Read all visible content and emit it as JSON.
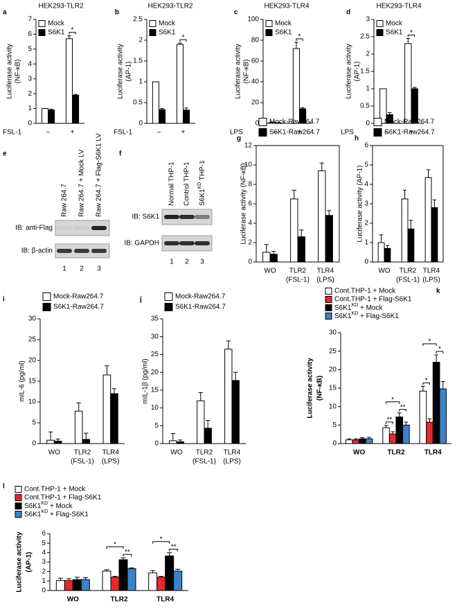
{
  "chart_data": [
    {
      "type": "bar",
      "panel": "a",
      "title": "HEK293-TLR2",
      "ylabel": [
        "Luciferase activity",
        "(NF-κB)"
      ],
      "xlabel": "FSL-1",
      "categories": [
        "–",
        "+"
      ],
      "legend": "upper left",
      "frame": "axes",
      "series": [
        {
          "name": "Mock",
          "color": "#ffffff",
          "values": [
            1,
            5.7
          ],
          "errors": [
            0,
            0.2
          ]
        },
        {
          "name": "S6K1",
          "color": "#000000",
          "values": [
            0.9,
            1.9
          ],
          "errors": [
            0.05,
            0.05
          ]
        }
      ],
      "ylim": [
        0,
        7
      ],
      "yticks": [
        0,
        1,
        2,
        3,
        4,
        5,
        6,
        7
      ],
      "significance": [
        "*"
      ]
    },
    {
      "type": "bar",
      "panel": "b",
      "title": "HEK293-TLR2",
      "ylabel": [
        "Luciferase activity",
        "(AP-1)"
      ],
      "xlabel": "FSL-1",
      "categories": [
        "–",
        "+"
      ],
      "legend": "upper left",
      "frame": "axes",
      "series": [
        {
          "name": "Mock",
          "color": "#ffffff",
          "values": [
            1,
            1.9
          ],
          "errors": [
            0,
            0.03
          ]
        },
        {
          "name": "S6K1",
          "color": "#000000",
          "values": [
            0.33,
            0.32
          ],
          "errors": [
            0.03,
            0.05
          ]
        }
      ],
      "ylim": [
        0,
        2.5
      ],
      "yticks": [
        0,
        0.5,
        1,
        1.5,
        2,
        2.5
      ],
      "significance": [
        "*"
      ]
    },
    {
      "type": "bar",
      "panel": "c",
      "title": "HEK293-TLR4",
      "ylabel": [
        "Luciferase activity",
        "(NF-κB)"
      ],
      "xlabel": "LPS",
      "categories": [
        "–",
        "+"
      ],
      "legend": "upper left",
      "frame": "axes",
      "series": [
        {
          "name": "Mock",
          "color": "#ffffff",
          "values": [
            1,
            72
          ],
          "errors": [
            0.3,
            6
          ]
        },
        {
          "name": "S6K1",
          "color": "#000000",
          "values": [
            0.5,
            14
          ],
          "errors": [
            0.2,
            1
          ]
        }
      ],
      "ylim": [
        0,
        100
      ],
      "yticks": [
        0,
        20,
        40,
        60,
        80,
        100
      ],
      "significance": [
        "*"
      ]
    },
    {
      "type": "bar",
      "panel": "d",
      "title": "HEK293-TLR4",
      "ylabel": [
        "Luciferase activity",
        "(AP-1)"
      ],
      "xlabel": "LPS",
      "categories": [
        "–",
        "+"
      ],
      "legend": "upper left",
      "frame": "axes",
      "series": [
        {
          "name": "Mock",
          "color": "#ffffff",
          "values": [
            1,
            2.3
          ],
          "errors": [
            0,
            0.15
          ]
        },
        {
          "name": "S6K1",
          "color": "#000000",
          "values": [
            0.25,
            1.0
          ],
          "errors": [
            0.06,
            0.04
          ]
        }
      ],
      "ylim": [
        0,
        3
      ],
      "yticks": [
        0,
        0.5,
        1,
        1.5,
        2,
        2.5,
        3
      ],
      "significance": [
        "*"
      ]
    },
    {
      "type": "blot",
      "panel": "e",
      "lanes": [
        "Raw 264.7",
        "Raw 264.7 + Mock LV",
        "Raw 264.7 + Flag-S6K1 LV"
      ],
      "rows": [
        "IB: anti-Flag",
        "IB: β-actin"
      ],
      "lane_numbers": [
        1,
        2,
        3
      ]
    },
    {
      "type": "blot",
      "panel": "f",
      "lanes": [
        "Normal THP-1",
        "Control THP-1",
        {
          "parts": [
            "S6K1",
            "KD",
            " THP-1"
          ]
        }
      ],
      "rows": [
        "IB: S6K1",
        "IB: GAPDH"
      ],
      "lane_numbers": [
        1,
        2,
        3
      ]
    },
    {
      "type": "bar",
      "panel": "g",
      "ylabel": "Luciferase activity (NF-κB)",
      "categories": [
        "WO",
        [
          "TLR2",
          "(FSL-1)"
        ],
        [
          "TLR4",
          "(LPS)"
        ]
      ],
      "legend": "top",
      "frame": "box",
      "series": [
        {
          "name": "Mock-Raw264.7",
          "color": "#ffffff",
          "values": [
            1.0,
            6.5,
            9.4
          ],
          "errors": [
            0.8,
            0.9,
            0.8
          ]
        },
        {
          "name": "S6K1-Raw264.7",
          "color": "#000000",
          "values": [
            0.8,
            2.6,
            4.8
          ],
          "errors": [
            0.3,
            0.7,
            0.5
          ]
        }
      ],
      "ylim": [
        0,
        12
      ],
      "yticks": [
        0,
        2,
        4,
        6,
        8,
        10,
        12
      ]
    },
    {
      "type": "bar",
      "panel": "h",
      "ylabel": "Luciferase activity (AP-1)",
      "categories": [
        "WO",
        [
          "TLR2",
          "(FSL-1)"
        ],
        [
          "TLR4",
          "(LPS)"
        ]
      ],
      "legend": "top",
      "frame": "box",
      "series": [
        {
          "name": "Mock-Raw264.7",
          "color": "#ffffff",
          "values": [
            1.0,
            3.25,
            4.35
          ],
          "errors": [
            0.4,
            0.45,
            0.4
          ]
        },
        {
          "name": "S6K1-Raw264.7",
          "color": "#000000",
          "values": [
            0.7,
            1.7,
            2.8
          ],
          "errors": [
            0.15,
            0.45,
            0.4
          ]
        }
      ],
      "ylim": [
        0,
        6
      ],
      "yticks": [
        0,
        1,
        2,
        3,
        4,
        5,
        6
      ]
    },
    {
      "type": "bar",
      "panel": "i",
      "ylabel": "mIL-6 (pg/ml)",
      "categories": [
        "WO",
        [
          "TLR2",
          "(FSL-1)"
        ],
        [
          "TLR4",
          "(LPS)"
        ]
      ],
      "legend": "top",
      "frame": "axes",
      "series": [
        {
          "name": "Mock-Raw264.7",
          "color": "#ffffff",
          "values": [
            0.8,
            7.8,
            16.5
          ],
          "errors": [
            2,
            2,
            2.2
          ]
        },
        {
          "name": "S6K1-Raw264.7",
          "color": "#000000",
          "values": [
            0.6,
            1.0,
            12.0
          ],
          "errors": [
            0.5,
            1.5,
            1.2
          ]
        }
      ],
      "ylim": [
        0,
        30
      ],
      "yticks": [
        0,
        5,
        10,
        15,
        20,
        25,
        30
      ]
    },
    {
      "type": "bar",
      "panel": "j",
      "ylabel": "mIL-1β (pg/ml)",
      "categories": [
        "WO",
        [
          "TLR2",
          "(FSL-1)"
        ],
        [
          "TLR4",
          "(LPS)"
        ]
      ],
      "legend": "top",
      "frame": "axes",
      "series": [
        {
          "name": "Mock-Raw264.7",
          "color": "#ffffff",
          "values": [
            0.8,
            12,
            26.5
          ],
          "errors": [
            2,
            2.3,
            2.3
          ]
        },
        {
          "name": "S6K1-Raw264.7",
          "color": "#000000",
          "values": [
            0.5,
            4.3,
            17.7
          ],
          "errors": [
            0.5,
            2.2,
            2.3
          ]
        }
      ],
      "ylim": [
        0,
        35
      ],
      "yticks": [
        0,
        5,
        10,
        15,
        20,
        25,
        30,
        35
      ]
    },
    {
      "type": "bar",
      "panel": "k",
      "ylabel": [
        "Luciferase activity",
        "(NF-κB)"
      ],
      "categories": [
        "WO",
        "TLR2",
        "TLR4"
      ],
      "legend": "top",
      "frame": "axes",
      "series": [
        {
          "name": "Cont.THP-1 + Mock",
          "color": "#ffffff",
          "values": [
            1,
            4.3,
            14.2
          ],
          "errors": [
            0.3,
            0.6,
            1.3
          ]
        },
        {
          "name": "Cont.THP-1 + Flag-S6K1",
          "color": "#e8282b",
          "values": [
            1,
            2.6,
            5.8
          ],
          "errors": [
            0.3,
            0.6,
            0.9
          ]
        },
        {
          "name": {
            "parts": [
              "S6K1",
              "KD",
              " + Mock"
            ]
          },
          "color": "#000000",
          "values": [
            1.3,
            7.2,
            22
          ],
          "errors": [
            0.3,
            1.1,
            2
          ]
        },
        {
          "name": {
            "parts": [
              "S6K1",
              "KD",
              " + Flag-S6K1"
            ]
          },
          "color": "#3a83c9",
          "values": [
            1.3,
            5,
            14.8
          ],
          "errors": [
            0.4,
            0.8,
            2
          ]
        }
      ],
      "ylim": [
        0,
        30
      ],
      "yticks": [
        0,
        5,
        10,
        15,
        20,
        25,
        30
      ],
      "significance": [
        "**",
        "*",
        "**",
        "*",
        "*",
        "*"
      ]
    },
    {
      "type": "bar",
      "panel": "l",
      "ylabel": [
        "Luciferase activity",
        "(AP-1)"
      ],
      "categories": [
        "WO",
        "TLR2",
        "TLR4"
      ],
      "legend": "top",
      "frame": "axes",
      "series": [
        {
          "name": "Cont.THP-1 + Mock",
          "color": "#ffffff",
          "values": [
            1.05,
            2.05,
            1.85
          ],
          "errors": [
            0.25,
            0.15,
            0.25
          ]
        },
        {
          "name": "Cont.THP-1 + Flag-S6K1",
          "color": "#e8282b",
          "values": [
            1.05,
            1.4,
            1.4
          ],
          "errors": [
            0.2,
            0.1,
            0.1
          ]
        },
        {
          "name": {
            "parts": [
              "S6K1",
              "KD",
              " + Mock"
            ]
          },
          "color": "#000000",
          "values": [
            1.15,
            3.25,
            3.65
          ],
          "errors": [
            0.25,
            0.2,
            0.35
          ]
        },
        {
          "name": {
            "parts": [
              "S6K1",
              "KD",
              " + Flag-S6K1"
            ]
          },
          "color": "#3a83c9",
          "values": [
            1.15,
            2.3,
            2.05
          ],
          "errors": [
            0.2,
            0.1,
            0.2
          ]
        }
      ],
      "ylim": [
        0,
        6
      ],
      "yticks": [
        0,
        1,
        2,
        3,
        4,
        5,
        6
      ],
      "significance": [
        "*",
        "**",
        "*",
        "**"
      ]
    }
  ]
}
